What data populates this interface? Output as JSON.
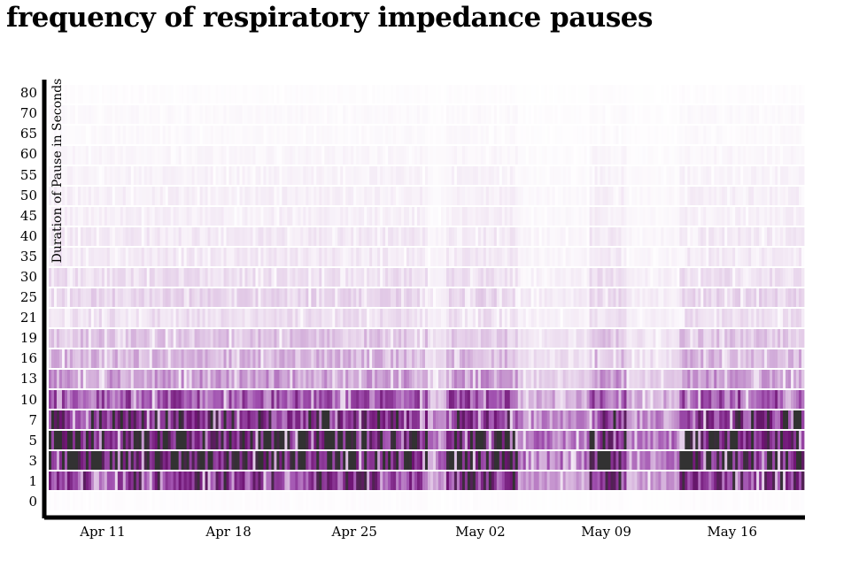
{
  "chart_data": {
    "type": "heatmap",
    "title": "frequency of respiratory impedance pauses",
    "xlabel": "",
    "ylabel": "Duration of Pause in Seconds",
    "x_ticks": [
      {
        "label": "Apr 11",
        "date": "2015-04-11"
      },
      {
        "label": "Apr 18",
        "date": "2015-04-18"
      },
      {
        "label": "Apr 25",
        "date": "2015-04-25"
      },
      {
        "label": "May 02",
        "date": "2015-05-02"
      },
      {
        "label": "May 09",
        "date": "2015-05-09"
      },
      {
        "label": "May 16",
        "date": "2015-05-16"
      }
    ],
    "x_range": [
      "2015-04-08",
      "2015-05-20"
    ],
    "y_bins": [
      "0",
      "1",
      "3",
      "5",
      "7",
      "10",
      "13",
      "16",
      "19",
      "21",
      "25",
      "30",
      "35",
      "40",
      "45",
      "50",
      "55",
      "60",
      "65",
      "70",
      "80"
    ],
    "approx_bin_mean_intensity": [
      0.01,
      0.7,
      0.9,
      0.9,
      0.75,
      0.55,
      0.3,
      0.22,
      0.18,
      0.1,
      0.13,
      0.1,
      0.07,
      0.07,
      0.05,
      0.05,
      0.04,
      0.03,
      0.02,
      0.02,
      0.01
    ],
    "low_activity_periods": [
      [
        "2015-04-29",
        "2015-04-30"
      ],
      [
        "2015-05-04",
        "2015-05-08"
      ],
      [
        "2015-05-10",
        "2015-05-13"
      ]
    ],
    "colors": {
      "low": "#ffffff",
      "mid": "#a050b0",
      "high": "#7a1a7a",
      "max": "#333333"
    },
    "grid": false,
    "legend": "none"
  }
}
